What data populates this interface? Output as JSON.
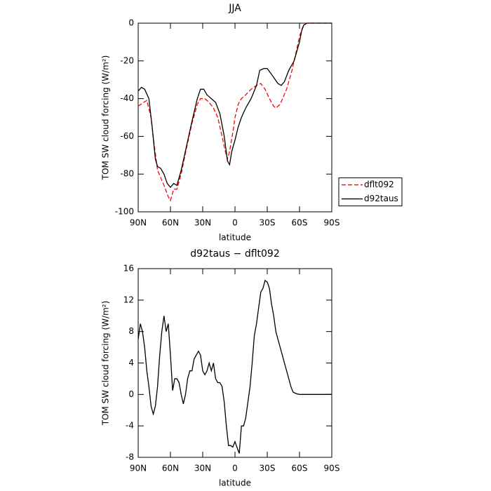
{
  "chart_data": [
    {
      "type": "line",
      "title": "JJA",
      "xlabel": "latitude",
      "ylabel": "TOM SW cloud forcing (W/m²)",
      "xlim": [
        90,
        -90
      ],
      "ylim": [
        -100,
        0
      ],
      "xticks": [
        {
          "value": 90,
          "label": "90N"
        },
        {
          "value": 60,
          "label": "60N"
        },
        {
          "value": 30,
          "label": "30N"
        },
        0,
        {
          "value": -30,
          "label": "30S"
        },
        {
          "value": -60,
          "label": "60S"
        },
        {
          "value": -90,
          "label": "90S"
        }
      ],
      "yticks": [
        -100,
        -80,
        -60,
        -40,
        -20,
        0
      ],
      "legend": "right",
      "series": [
        {
          "name": "dflt092",
          "color": "#ff0000",
          "dashed": true,
          "x": [
            90,
            85,
            82,
            78,
            75,
            72,
            69,
            66,
            62,
            60,
            57,
            54,
            50,
            45,
            40,
            35,
            32,
            28,
            24,
            20,
            16,
            12,
            9,
            7,
            5,
            2,
            0,
            -3,
            -6,
            -10,
            -15,
            -20,
            -24,
            -28,
            -32,
            -36,
            -38,
            -42,
            -48,
            -53,
            -57,
            -60,
            -63,
            -66,
            -70,
            -90
          ],
          "values": [
            -44,
            -42,
            -41,
            -50,
            -65,
            -78,
            -82,
            -86,
            -92,
            -94,
            -88,
            -88,
            -80,
            -66,
            -53,
            -43,
            -40,
            -40,
            -42,
            -45,
            -50,
            -60,
            -68,
            -72,
            -68,
            -58,
            -50,
            -43,
            -40,
            -38,
            -35,
            -33,
            -32,
            -35,
            -40,
            -44,
            -45,
            -43,
            -35,
            -25,
            -15,
            -7,
            -2,
            0,
            0,
            0
          ]
        },
        {
          "name": "d92taus",
          "color": "#000000",
          "dashed": false,
          "x": [
            90,
            87,
            84,
            80,
            77,
            74,
            72,
            69,
            66,
            63,
            60,
            57,
            54,
            50,
            45,
            40,
            35,
            32,
            29,
            26,
            22,
            18,
            14,
            10,
            7,
            5,
            3,
            0,
            -3,
            -6,
            -10,
            -15,
            -20,
            -23,
            -27,
            -30,
            -35,
            -40,
            -43,
            -46,
            -50,
            -55,
            -58,
            -60,
            -62,
            -64,
            -67,
            -70,
            -90
          ],
          "values": [
            -36,
            -34,
            -35,
            -40,
            -55,
            -72,
            -76,
            -77,
            -80,
            -85,
            -87,
            -85,
            -86,
            -78,
            -65,
            -52,
            -40,
            -35,
            -35,
            -38,
            -40,
            -42,
            -48,
            -60,
            -73,
            -75,
            -68,
            -62,
            -55,
            -50,
            -45,
            -40,
            -33,
            -25,
            -24,
            -24,
            -28,
            -32,
            -33,
            -31,
            -25,
            -20,
            -14,
            -10,
            -4,
            -1,
            0,
            0,
            0
          ]
        }
      ]
    },
    {
      "type": "line",
      "title": "d92taus − dflt092",
      "xlabel": "latitude",
      "ylabel": "TOM SW cloud forcing (W/m²)",
      "xlim": [
        90,
        -90
      ],
      "ylim": [
        -8,
        16
      ],
      "xticks": [
        {
          "value": 90,
          "label": "90N"
        },
        {
          "value": 60,
          "label": "60N"
        },
        {
          "value": 30,
          "label": "30N"
        },
        0,
        {
          "value": -30,
          "label": "30S"
        },
        {
          "value": -60,
          "label": "60S"
        },
        {
          "value": -90,
          "label": "90S"
        }
      ],
      "yticks": [
        -8,
        -4,
        0,
        4,
        8,
        12,
        16
      ],
      "series": [
        {
          "color": "#000000",
          "dashed": false,
          "x": [
            90,
            88,
            86,
            84,
            82,
            80,
            78,
            76,
            74,
            72,
            70,
            68,
            66,
            64,
            62,
            60,
            58,
            56,
            54,
            52,
            50,
            48,
            46,
            44,
            42,
            40,
            38,
            36,
            34,
            32,
            30,
            28,
            26,
            24,
            22,
            20,
            18,
            16,
            14,
            12,
            10,
            8,
            6,
            4,
            2,
            0,
            -2,
            -4,
            -6,
            -8,
            -10,
            -12,
            -14,
            -16,
            -18,
            -20,
            -22,
            -24,
            -26,
            -28,
            -30,
            -32,
            -34,
            -36,
            -38,
            -40,
            -42,
            -44,
            -46,
            -48,
            -50,
            -52,
            -54,
            -57,
            -60,
            -90
          ],
          "values": [
            7,
            9,
            8,
            6,
            3,
            1,
            -1.5,
            -2.5,
            -1.5,
            1,
            5,
            8,
            10,
            8,
            9,
            5,
            0.5,
            2,
            2,
            1.5,
            0,
            -1.2,
            0,
            2,
            3,
            3,
            4.5,
            5,
            5.5,
            5,
            3,
            2.5,
            3,
            4,
            3,
            4,
            2,
            1.5,
            1.5,
            1,
            -1,
            -4,
            -6.5,
            -6.5,
            -6.7,
            -6,
            -6.8,
            -7.5,
            -4,
            -4,
            -3,
            -1,
            1,
            4,
            7.5,
            9,
            11,
            13,
            13.5,
            14.5,
            14.3,
            13.5,
            11.5,
            10,
            8,
            7,
            6,
            5,
            4,
            3,
            2,
            1,
            0.3,
            0.1,
            0,
            0
          ]
        }
      ]
    }
  ]
}
